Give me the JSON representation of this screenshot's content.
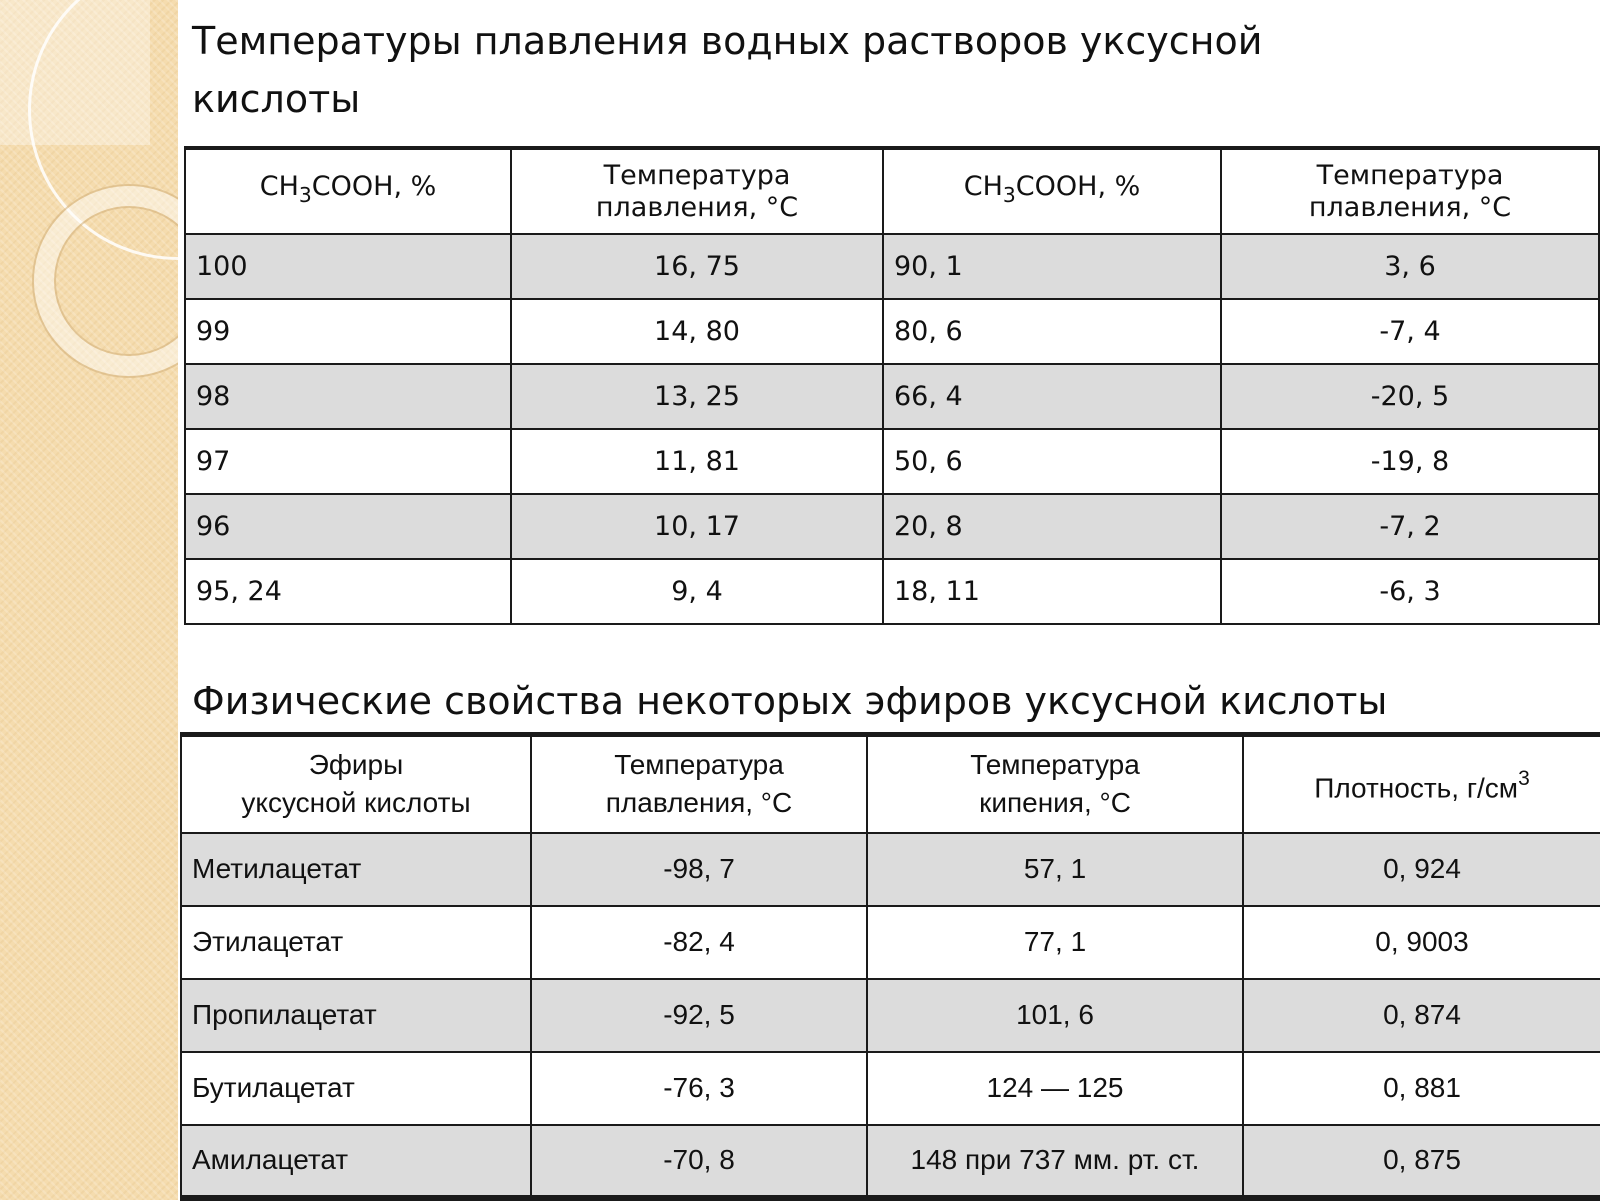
{
  "title1": "Температуры плавления водных растворов уксусной кислоты",
  "title2": "Физические свойства некоторых эфиров уксусной кислоты",
  "table1": {
    "col_acid_prefix": "CH",
    "col_acid_sub": "3",
    "col_acid_suffix": "COOH, %",
    "col_temp_line1": "Температура",
    "col_temp_line2": "плавления, °C",
    "rows": [
      [
        "100",
        "16, 75",
        "90, 1",
        "3, 6"
      ],
      [
        "99",
        "14, 80",
        "80, 6",
        "-7, 4"
      ],
      [
        "98",
        "13, 25",
        "66, 4",
        "-20, 5"
      ],
      [
        "97",
        "11, 81",
        "50, 6",
        "-19, 8"
      ],
      [
        "96",
        "10, 17",
        "20, 8",
        "-7, 2"
      ],
      [
        "95, 24",
        "9, 4",
        "18, 11",
        "-6, 3"
      ]
    ]
  },
  "table2": {
    "h_esters_line1": "Эфиры",
    "h_esters_line2": "уксусной кислоты",
    "h_melt_line1": "Температура",
    "h_melt_line2": "плавления, °C",
    "h_boil_line1": "Температура",
    "h_boil_line2": "кипения, °C",
    "h_density": "Плотность, г/см",
    "h_density_sup": "3",
    "rows": [
      [
        "Метилацетат",
        "-98, 7",
        "57, 1",
        "0, 924"
      ],
      [
        "Этилацетат",
        "-82, 4",
        "77, 1",
        "0, 9003"
      ],
      [
        "Пропилацетат",
        "-92, 5",
        "101, 6",
        "0, 874"
      ],
      [
        "Бутилацетат",
        "-76, 3",
        "124 — 125",
        "0, 881"
      ],
      [
        "Амилацетат",
        "-70, 8",
        "148 при 737 мм. рт. ст.",
        "0, 875"
      ]
    ]
  }
}
